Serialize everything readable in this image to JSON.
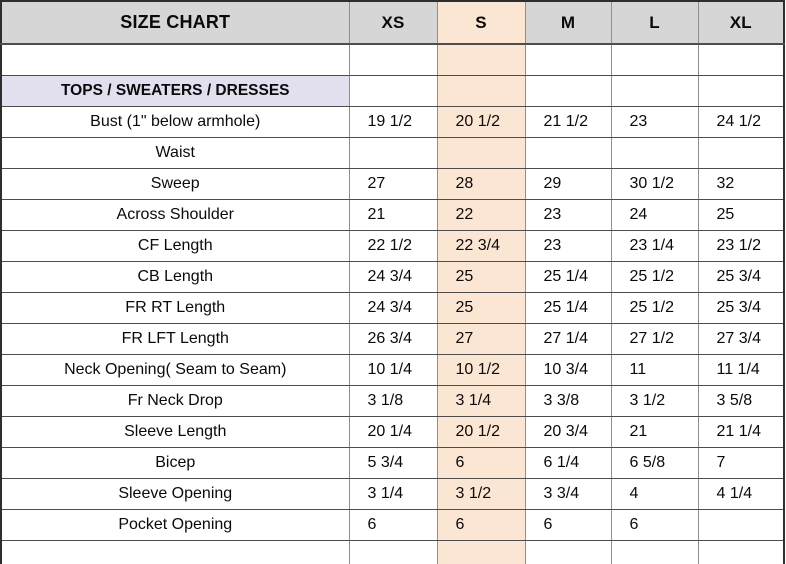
{
  "colors": {
    "header_bg": "#d6d6d6",
    "highlight_col_bg": "#fbe5d3",
    "section_bg": "#e2dfee",
    "grid_line": "#8f8f8f",
    "row_line": "#4d4d4d",
    "outer_border": "#2e2e2e",
    "text": "#0a0a0a"
  },
  "table": {
    "title": "SIZE CHART",
    "columns": [
      "XS",
      "S",
      "M",
      "L",
      "XL"
    ],
    "highlighted_column": "S",
    "rows": [
      {
        "label": "",
        "type": "empty",
        "values": [
          "",
          "",
          "",
          "",
          ""
        ]
      },
      {
        "label": "TOPS / SWEATERS / DRESSES",
        "type": "section",
        "values": [
          "",
          "",
          "",
          "",
          ""
        ]
      },
      {
        "label": "Bust (1\" below armhole)",
        "type": "measure",
        "values": [
          "19 1/2",
          "20 1/2",
          "21 1/2",
          "23",
          "24 1/2"
        ]
      },
      {
        "label": "Waist",
        "type": "measure",
        "values": [
          "",
          "",
          "",
          "",
          ""
        ]
      },
      {
        "label": "Sweep",
        "type": "measure",
        "values": [
          "27",
          "28",
          "29",
          "30 1/2",
          "32"
        ]
      },
      {
        "label": "Across Shoulder",
        "type": "measure",
        "values": [
          "21",
          "22",
          "23",
          "24",
          "25"
        ]
      },
      {
        "label": "CF Length",
        "type": "measure",
        "values": [
          "22 1/2",
          "22 3/4",
          "23",
          "23 1/4",
          "23 1/2"
        ]
      },
      {
        "label": "CB Length",
        "type": "measure",
        "values": [
          "24 3/4",
          "25",
          "25 1/4",
          "25 1/2",
          "25 3/4"
        ]
      },
      {
        "label": "FR RT Length",
        "type": "measure",
        "values": [
          "24 3/4",
          "25",
          "25 1/4",
          "25 1/2",
          "25 3/4"
        ]
      },
      {
        "label": "FR LFT Length",
        "type": "measure",
        "values": [
          "26 3/4",
          "27",
          "27 1/4",
          "27 1/2",
          "27 3/4"
        ]
      },
      {
        "label": "Neck Opening( Seam to Seam)",
        "type": "measure",
        "values": [
          "10 1/4",
          "10 1/2",
          "10 3/4",
          "11",
          "11 1/4"
        ]
      },
      {
        "label": "Fr Neck Drop",
        "type": "measure",
        "values": [
          "3 1/8",
          "3 1/4",
          "3 3/8",
          "3 1/2",
          "3 5/8"
        ]
      },
      {
        "label": "Sleeve Length",
        "type": "measure",
        "values": [
          "20 1/4",
          "20 1/2",
          "20 3/4",
          "21",
          "21 1/4"
        ]
      },
      {
        "label": "Bicep",
        "type": "measure",
        "values": [
          "5 3/4",
          "6",
          "6 1/4",
          "6 5/8",
          "7"
        ]
      },
      {
        "label": "Sleeve Opening",
        "type": "measure",
        "values": [
          "3 1/4",
          "3 1/2",
          "3 3/4",
          "4",
          "4 1/4"
        ]
      },
      {
        "label": "Pocket Opening",
        "type": "measure",
        "values": [
          "6",
          "6",
          "6",
          "6",
          ""
        ]
      },
      {
        "label": "",
        "type": "empty",
        "values": [
          "",
          "",
          "",
          "",
          ""
        ]
      }
    ]
  }
}
